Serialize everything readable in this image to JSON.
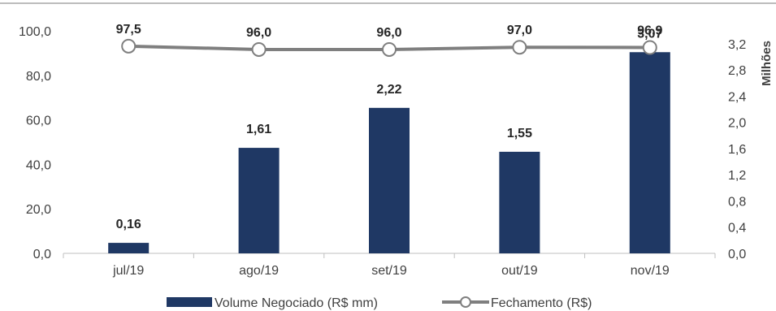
{
  "chart_data": {
    "type": "bar",
    "categories": [
      "jul/19",
      "ago/19",
      "set/19",
      "out/19",
      "nov/19"
    ],
    "series": [
      {
        "name": "Volume Negociado (R$ mm)",
        "type": "bar",
        "axis": "right",
        "values": [
          0.16,
          1.61,
          2.22,
          1.55,
          3.07
        ],
        "labels": [
          "0,16",
          "1,61",
          "2,22",
          "1,55",
          "3,07"
        ],
        "color": "#1f3864"
      },
      {
        "name": "Fechamento (R$)",
        "type": "line",
        "axis": "left",
        "values": [
          97.5,
          96.0,
          96.0,
          97.0,
          96.9
        ],
        "labels": [
          "97,5",
          "96,0",
          "96,0",
          "97,0",
          "96,9"
        ],
        "color": "#7f7f7f"
      }
    ],
    "y_left": {
      "lim": [
        0,
        100
      ],
      "ticks": [
        0,
        20,
        40,
        60,
        80,
        100
      ],
      "tick_labels": [
        "0,0",
        "20,0",
        "40,0",
        "60,0",
        "80,0",
        "100,0"
      ]
    },
    "y_right": {
      "lim": [
        0,
        3.5
      ],
      "ticks": [
        0,
        0.4,
        0.8,
        1.2,
        1.6,
        2.0,
        2.4,
        2.8,
        3.2
      ],
      "tick_labels": [
        "0,0",
        "0,4",
        "0,8",
        "1,2",
        "1,6",
        "2,0",
        "2,4",
        "2,8",
        "3,2"
      ],
      "unit_label": "Milhões"
    },
    "legend_position": "bottom",
    "grid": false
  }
}
